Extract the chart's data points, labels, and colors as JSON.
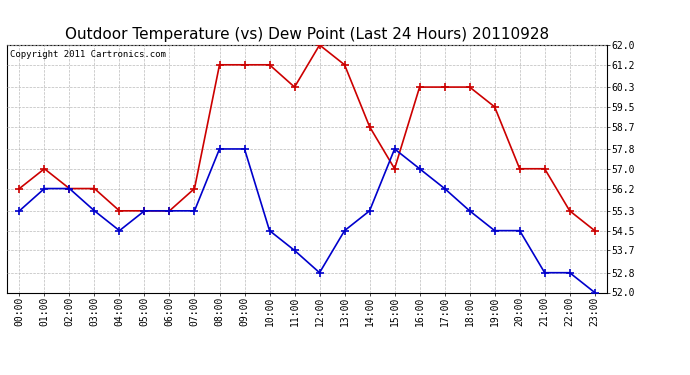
{
  "title": "Outdoor Temperature (vs) Dew Point (Last 24 Hours) 20110928",
  "copyright_text": "Copyright 2011 Cartronics.com",
  "x_labels": [
    "00:00",
    "01:00",
    "02:00",
    "03:00",
    "04:00",
    "05:00",
    "06:00",
    "07:00",
    "08:00",
    "09:00",
    "10:00",
    "11:00",
    "12:00",
    "13:00",
    "14:00",
    "15:00",
    "16:00",
    "17:00",
    "18:00",
    "19:00",
    "20:00",
    "21:00",
    "22:00",
    "23:00"
  ],
  "temp_data": [
    56.2,
    57.0,
    56.2,
    56.2,
    55.3,
    55.3,
    55.3,
    56.2,
    61.2,
    61.2,
    61.2,
    60.3,
    62.0,
    61.2,
    58.7,
    57.0,
    60.3,
    60.3,
    60.3,
    59.5,
    57.0,
    57.0,
    55.3,
    54.5
  ],
  "dew_data": [
    55.3,
    56.2,
    56.2,
    55.3,
    54.5,
    55.3,
    55.3,
    55.3,
    57.8,
    57.8,
    54.5,
    53.7,
    52.8,
    54.5,
    55.3,
    57.8,
    57.0,
    56.2,
    55.3,
    54.5,
    54.5,
    52.8,
    52.8,
    52.0
  ],
  "temp_color": "#cc0000",
  "dew_color": "#0000cc",
  "ylim_min": 52.0,
  "ylim_max": 62.0,
  "yticks": [
    52.0,
    52.8,
    53.7,
    54.5,
    55.3,
    56.2,
    57.0,
    57.8,
    58.7,
    59.5,
    60.3,
    61.2,
    62.0
  ],
  "background_color": "#ffffff",
  "plot_bg_color": "#ffffff",
  "grid_color": "#bbbbbb",
  "title_fontsize": 11,
  "copyright_fontsize": 6.5,
  "tick_fontsize": 7,
  "marker_size": 4,
  "line_width": 1.2
}
